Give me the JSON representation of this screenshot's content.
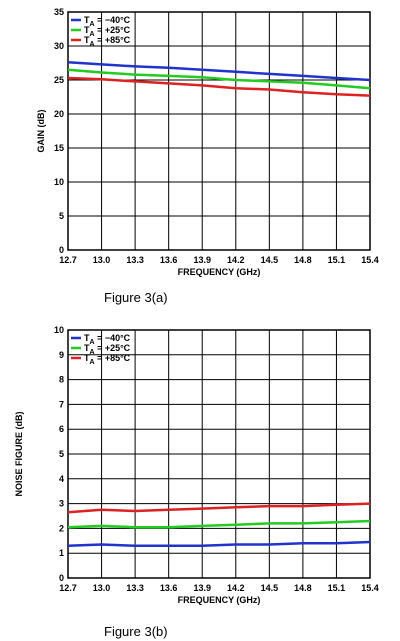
{
  "chart_data": [
    {
      "type": "line",
      "figure_caption": "Figure 3(a)",
      "xlabel": "FREQUENCY (GHz)",
      "ylabel": "GAIN (dB)",
      "xlim": [
        12.7,
        15.4
      ],
      "ylim": [
        0,
        35
      ],
      "x_ticks": [
        "12.7",
        "13.0",
        "13.3",
        "13.6",
        "13.9",
        "14.2",
        "14.5",
        "14.8",
        "15.1",
        "15.4"
      ],
      "y_ticks": [
        "0",
        "5",
        "10",
        "15",
        "20",
        "25",
        "30",
        "35"
      ],
      "grid": true,
      "legend_position": "top-left",
      "x": [
        12.7,
        13.0,
        13.3,
        13.6,
        13.9,
        14.2,
        14.5,
        14.8,
        15.1,
        15.4
      ],
      "series": [
        {
          "name": "T_A = −40°C",
          "color": "#2233cc",
          "values": [
            27.6,
            27.3,
            27.0,
            26.8,
            26.5,
            26.2,
            25.9,
            25.6,
            25.3,
            25.0
          ]
        },
        {
          "name": "T_A = +25°C",
          "color": "#22cc22",
          "values": [
            26.5,
            26.1,
            25.8,
            25.6,
            25.4,
            25.0,
            24.8,
            24.6,
            24.2,
            23.8
          ]
        },
        {
          "name": "T_A = +85°C",
          "color": "#dd2222",
          "values": [
            25.3,
            25.1,
            24.8,
            24.5,
            24.2,
            23.8,
            23.6,
            23.2,
            22.9,
            22.7
          ]
        }
      ]
    },
    {
      "type": "line",
      "figure_caption": "Figure 3(b)",
      "xlabel": "FREQUENCY (GHz)",
      "ylabel": "NOISE FIGURE (dB)",
      "xlim": [
        12.7,
        15.4
      ],
      "ylim": [
        0,
        10
      ],
      "x_ticks": [
        "12.7",
        "13.0",
        "13.3",
        "13.6",
        "13.9",
        "14.2",
        "14.5",
        "14.8",
        "15.1",
        "15.4"
      ],
      "y_ticks": [
        "0",
        "1",
        "2",
        "3",
        "4",
        "5",
        "6",
        "7",
        "8",
        "9",
        "10"
      ],
      "grid": true,
      "legend_position": "top-left",
      "x": [
        12.7,
        13.0,
        13.3,
        13.6,
        13.9,
        14.2,
        14.5,
        14.8,
        15.1,
        15.4
      ],
      "series": [
        {
          "name": "T_A = −40°C",
          "color": "#2233cc",
          "values": [
            1.3,
            1.35,
            1.3,
            1.3,
            1.3,
            1.35,
            1.35,
            1.4,
            1.4,
            1.45
          ]
        },
        {
          "name": "T_A = +25°C",
          "color": "#22cc22",
          "values": [
            2.05,
            2.1,
            2.05,
            2.05,
            2.1,
            2.15,
            2.2,
            2.2,
            2.25,
            2.3
          ]
        },
        {
          "name": "T_A = +85°C",
          "color": "#dd2222",
          "values": [
            2.65,
            2.75,
            2.7,
            2.75,
            2.8,
            2.85,
            2.9,
            2.9,
            2.95,
            3.0
          ]
        }
      ]
    }
  ]
}
